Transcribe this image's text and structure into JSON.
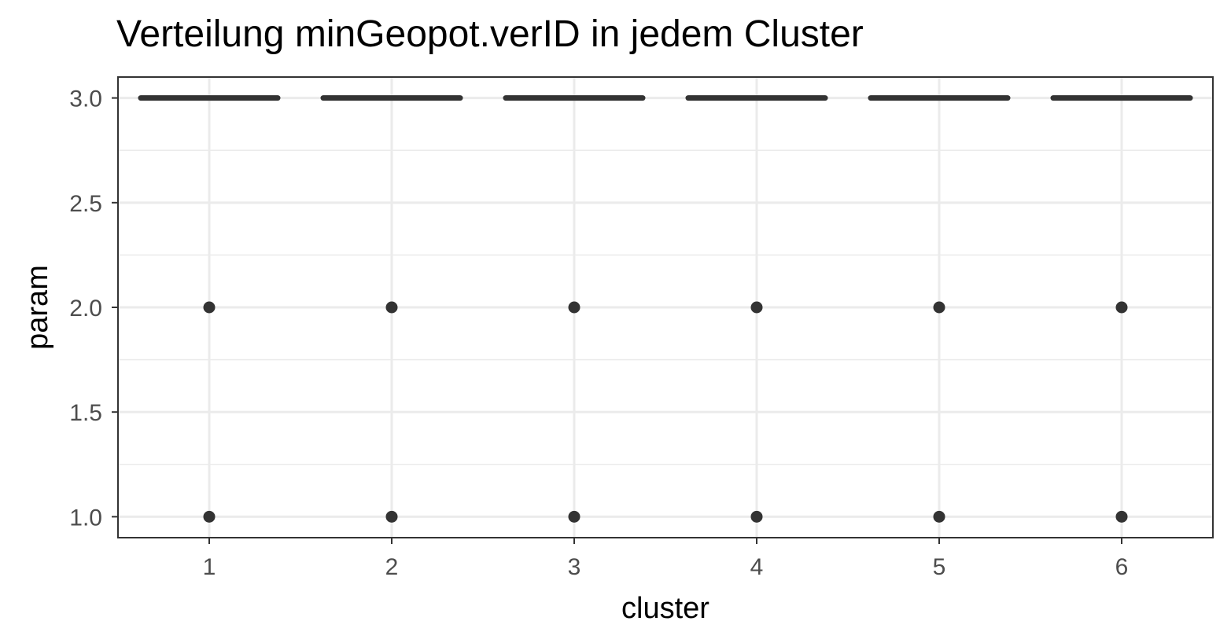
{
  "chart_data": {
    "type": "boxplot",
    "title": "Verteilung minGeopot.verID in jedem Cluster",
    "xlabel": "cluster",
    "ylabel": "param",
    "categories": [
      "1",
      "2",
      "3",
      "4",
      "5",
      "6"
    ],
    "x_ticks": [
      "1",
      "2",
      "3",
      "4",
      "5",
      "6"
    ],
    "y_ticks": [
      "1.0",
      "1.5",
      "2.0",
      "2.5",
      "3.0"
    ],
    "y_tick_values": [
      1.0,
      1.5,
      2.0,
      2.5,
      3.0
    ],
    "ylim": [
      0.9,
      3.1
    ],
    "boxes": [
      {
        "cluster": "1",
        "median": 3.0,
        "q1": 3.0,
        "q3": 3.0,
        "whisker_low": 3.0,
        "whisker_high": 3.0,
        "outliers": [
          1.0,
          2.0
        ]
      },
      {
        "cluster": "2",
        "median": 3.0,
        "q1": 3.0,
        "q3": 3.0,
        "whisker_low": 3.0,
        "whisker_high": 3.0,
        "outliers": [
          1.0,
          2.0
        ]
      },
      {
        "cluster": "3",
        "median": 3.0,
        "q1": 3.0,
        "q3": 3.0,
        "whisker_low": 3.0,
        "whisker_high": 3.0,
        "outliers": [
          1.0,
          2.0
        ]
      },
      {
        "cluster": "4",
        "median": 3.0,
        "q1": 3.0,
        "q3": 3.0,
        "whisker_low": 3.0,
        "whisker_high": 3.0,
        "outliers": [
          1.0,
          2.0
        ]
      },
      {
        "cluster": "5",
        "median": 3.0,
        "q1": 3.0,
        "q3": 3.0,
        "whisker_low": 3.0,
        "whisker_high": 3.0,
        "outliers": [
          1.0,
          2.0
        ]
      },
      {
        "cluster": "6",
        "median": 3.0,
        "q1": 3.0,
        "q3": 3.0,
        "whisker_low": 3.0,
        "whisker_high": 3.0,
        "outliers": [
          1.0,
          2.0
        ]
      }
    ],
    "grid": true,
    "legend": "none",
    "colors": {
      "marks": "#333333",
      "grid": "#ebebeb",
      "panel_border": "#333333",
      "tick_text": "#4d4d4d"
    }
  }
}
